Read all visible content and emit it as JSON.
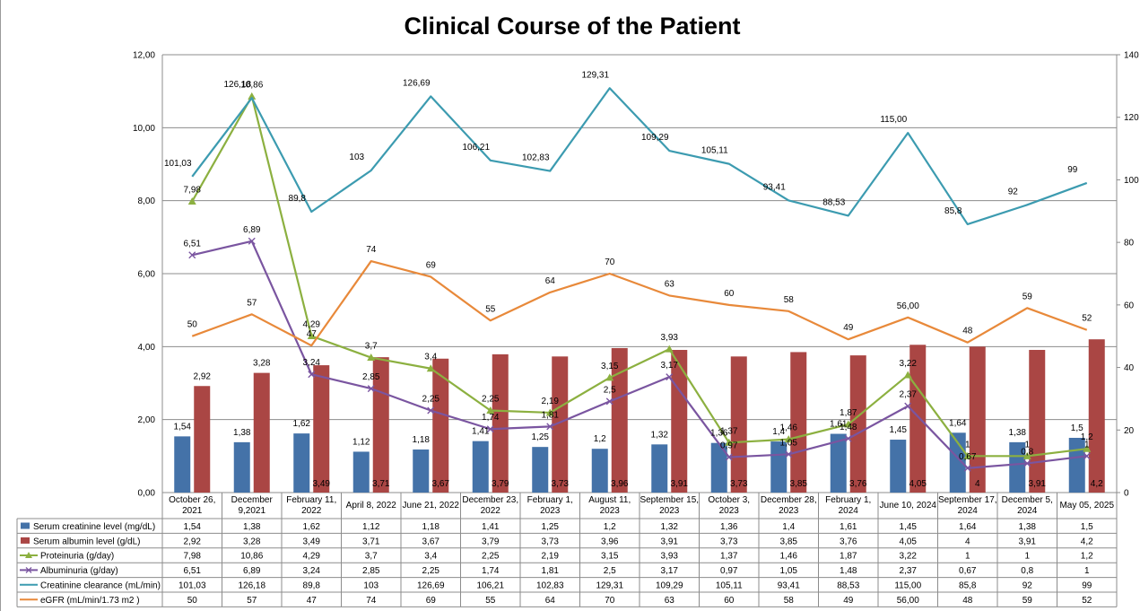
{
  "chart_data": {
    "type": "bar",
    "title": "Clinical Course of the Patient",
    "categories": [
      [
        "October 26,",
        "2021"
      ],
      [
        "December",
        "9,2021"
      ],
      [
        "February 11,",
        "2022"
      ],
      [
        "April 8, 2022"
      ],
      [
        "June 21, 2022"
      ],
      [
        "December 23,",
        "2022"
      ],
      [
        "February 1,",
        "2023"
      ],
      [
        "August 11,",
        "2023"
      ],
      [
        "September 15,",
        "2023"
      ],
      [
        "October 3,",
        "2023"
      ],
      [
        "December 28,",
        "2023"
      ],
      [
        "February 1,",
        "2024"
      ],
      [
        "June 10, 2024"
      ],
      [
        "September 17,",
        "2024"
      ],
      [
        "December 5,",
        "2024"
      ],
      [
        "May 05, 2025"
      ]
    ],
    "y_left": {
      "min": 0,
      "max": 12,
      "ticks": [
        "0,00",
        "2,00",
        "4,00",
        "6,00",
        "8,00",
        "10,00",
        "12,00"
      ]
    },
    "y_right": {
      "min": 0,
      "max": 140,
      "ticks": [
        "0",
        "20",
        "40",
        "60",
        "80",
        "100",
        "120",
        "140"
      ]
    },
    "grid": true,
    "legend": "data-table",
    "series": [
      {
        "name": "Serum creatinine level (mg/dL)",
        "kind": "bar",
        "axis": "left",
        "color": "#4472a8",
        "values": [
          1.54,
          1.38,
          1.62,
          1.12,
          1.18,
          1.41,
          1.25,
          1.2,
          1.32,
          1.36,
          1.4,
          1.61,
          1.45,
          1.64,
          1.38,
          1.5
        ],
        "labels": [
          "1,54",
          "1,38",
          "1,62",
          "1,12",
          "1,18",
          "1,41",
          "1,25",
          "1,2",
          "1,32",
          "1,36",
          "1,4",
          "1,61",
          "1,45",
          "1,64",
          "1,38",
          "1,5"
        ]
      },
      {
        "name": "Serum albumin level (g/dL)",
        "kind": "bar",
        "axis": "left",
        "color": "#aa4644",
        "values": [
          2.92,
          3.28,
          3.49,
          3.71,
          3.67,
          3.79,
          3.73,
          3.96,
          3.91,
          3.73,
          3.85,
          3.76,
          4.05,
          4,
          3.91,
          4.2
        ],
        "labels": [
          "2,92",
          "3,28",
          "3,49",
          "3,71",
          "3,67",
          "3,79",
          "3,73",
          "3,96",
          "3,91",
          "3,73",
          "3,85",
          "3,76",
          "4,05",
          "4",
          "3,91",
          "4,2"
        ]
      },
      {
        "name": "Proteinuria (g/day)",
        "kind": "line",
        "axis": "left",
        "color": "#8cb040",
        "marker": "triangle",
        "values": [
          7.98,
          10.86,
          4.29,
          3.7,
          3.4,
          2.25,
          2.19,
          3.15,
          3.93,
          1.37,
          1.46,
          1.87,
          3.22,
          1,
          1,
          1.2
        ],
        "labels": [
          "7,98",
          "10,86",
          "4,29",
          "3,7",
          "3,4",
          "2,25",
          "2,19",
          "3,15",
          "3,93",
          "1,37",
          "1,46",
          "1,87",
          "3,22",
          "1",
          "1",
          "1,2"
        ]
      },
      {
        "name": "Albuminuria (g/day)",
        "kind": "line",
        "axis": "left",
        "color": "#7a55a0",
        "marker": "x",
        "values": [
          6.51,
          6.89,
          3.24,
          2.85,
          2.25,
          1.74,
          1.81,
          2.5,
          3.17,
          0.97,
          1.05,
          1.48,
          2.37,
          0.67,
          0.8,
          1
        ],
        "labels": [
          "6,51",
          "6,89",
          "3,24",
          "2,85",
          "2,25",
          "1,74",
          "1,81",
          "2,5",
          "3,17",
          "0,97",
          "1,05",
          "1,48",
          "2,37",
          "0,67",
          "0,8",
          "1"
        ]
      },
      {
        "name": "Creatinine clearance (mL/min)",
        "kind": "line",
        "axis": "right",
        "color": "#3c9bb0",
        "marker": "none",
        "values": [
          101.03,
          126.18,
          89.8,
          103,
          126.69,
          106.21,
          102.83,
          129.31,
          109.29,
          105.11,
          93.41,
          88.53,
          115,
          85.8,
          92,
          99
        ],
        "labels": [
          "101,03",
          "126,18",
          "89,8",
          "103",
          "126,69",
          "106,21",
          "102,83",
          "129,31",
          "109,29",
          "105,11",
          "93,41",
          "88,53",
          "115,00",
          "85,8",
          "92",
          "99"
        ]
      },
      {
        "name": "eGFR (mL/min/1.73 m2 )",
        "kind": "line",
        "axis": "right",
        "color": "#e8893a",
        "marker": "none",
        "values": [
          50,
          57,
          47,
          74,
          69,
          55,
          64,
          70,
          63,
          60,
          58,
          49,
          56,
          48,
          59,
          52
        ],
        "labels": [
          "50",
          "57",
          "47",
          "74",
          "69",
          "55",
          "64",
          "70",
          "63",
          "60",
          "58",
          "49",
          "56,00",
          "48",
          "59",
          "52"
        ]
      }
    ]
  }
}
